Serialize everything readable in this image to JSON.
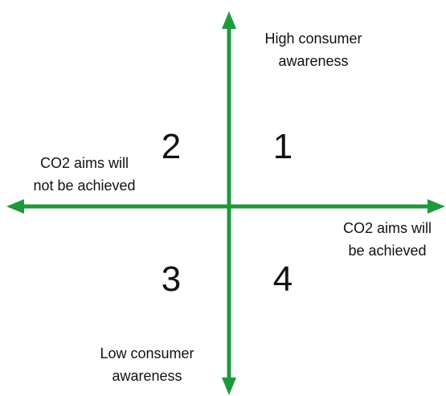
{
  "axes": {
    "top": [
      "High consumer",
      "awareness"
    ],
    "bottom": [
      "Low consumer",
      "awareness"
    ],
    "left": [
      "CO2 aims will",
      "not be achieved"
    ],
    "right": [
      "CO2 aims will",
      "be achieved"
    ]
  },
  "quadrants": [
    "1",
    "2",
    "3",
    "4"
  ]
}
